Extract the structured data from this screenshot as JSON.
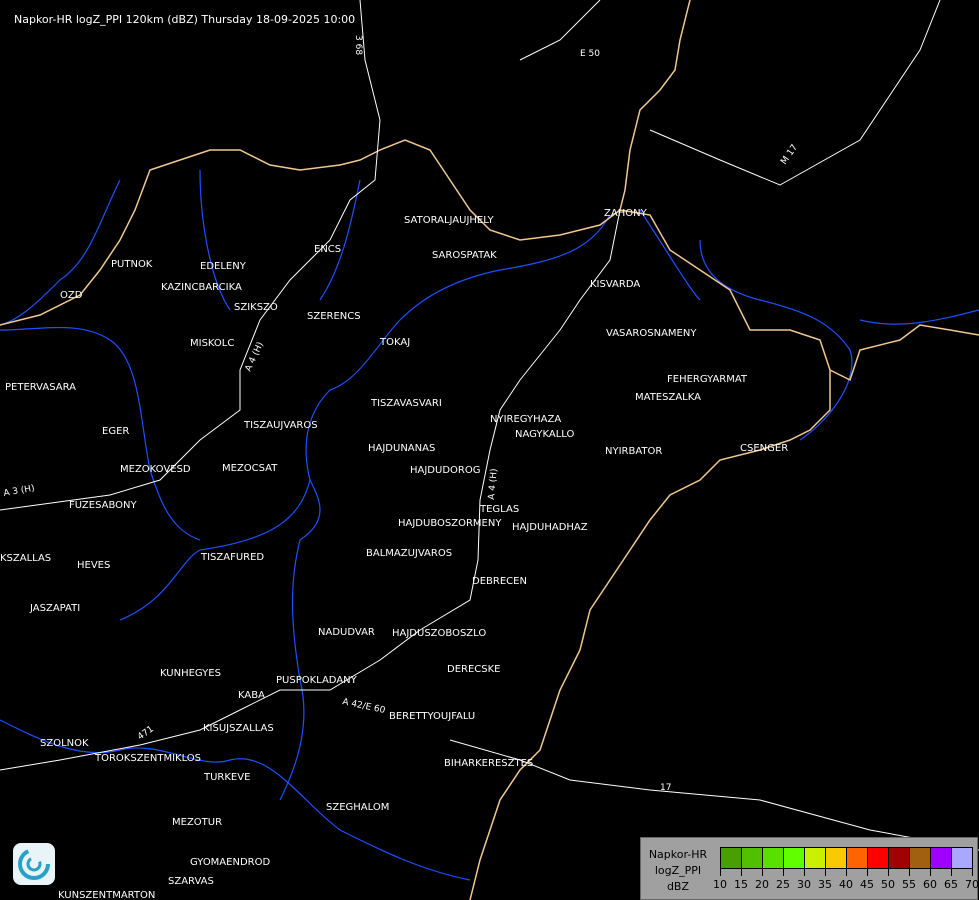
{
  "header": {
    "title": "Napkor-HR logZ_PPI 120km (dBZ) Thursday 18-09-2025 10:00"
  },
  "cities": [
    "SATORALJAUJHELY",
    "SAROSPATAK",
    "ZAHONY",
    "KISVARDA",
    "ENCS",
    "PUTNOK",
    "EDELENY",
    "KAZINCBARCIKA",
    "OZD",
    "SZIKSZO",
    "SZERENCS",
    "TOKAJ",
    "MISKOLC",
    "VASAROSNAMENY",
    "FEHERGYARMAT",
    "MATESZALKA",
    "PETERVASARA",
    "TISZAVASVARI",
    "NYIREGYHAZA",
    "NAGYKALLO",
    "EGER",
    "TISZAUJVAROS",
    "HAJDUNANAS",
    "NYIRBATOR",
    "CSENGER",
    "HAJDUDOROG",
    "MEZOKOVESD",
    "MEZOCSAT",
    "FUZESABONY",
    "TEGLAS",
    "HAJDUBOSZORMENY",
    "HAJDUHADHAZ",
    "BALMAZUJVAROS",
    "TISZAFURED",
    "KSZALLAS",
    "HEVES",
    "DEBRECEN",
    "JASZAPATI",
    "NADUDVAR",
    "HAJDUSZOBOSZLO",
    "DERECSKE",
    "KUNHEGYES",
    "KABA",
    "PUSPOKLADANY",
    "BERETTYOUJFALU",
    "KISUJSZALLAS",
    "SZOLNOK",
    "TOROKSZENTMIKLOS",
    "BIHARKERESZTES",
    "TURKEVE",
    "SZEGHALOM",
    "MEZOTUR",
    "GYOMAENDROD",
    "SZARVAS",
    "KUNSZENTMARTON"
  ],
  "roads": [
    "3 68",
    "E 50",
    "M 17",
    "A 3 (H)",
    "A 4 (H)",
    "A 4 (H)",
    "A 42/E 60",
    "471",
    "17"
  ],
  "legend": {
    "lines": [
      "Napkor-HR",
      "logZ_PPI",
      "dBZ"
    ],
    "colors": [
      "#48a000",
      "#50c000",
      "#58e000",
      "#60ff00",
      "#c8f000",
      "#f8c800",
      "#ff6400",
      "#ff0000",
      "#a00000",
      "#a06010",
      "#a000ff",
      "#a8a8ff"
    ],
    "ticks": [
      "10",
      "15",
      "20",
      "25",
      "30",
      "35",
      "40",
      "45",
      "50",
      "55",
      "60",
      "65",
      "70"
    ]
  },
  "colors": {
    "background": "#000000",
    "river": "#1e50ff",
    "border": "#f0c890",
    "road": "#ffffff"
  }
}
